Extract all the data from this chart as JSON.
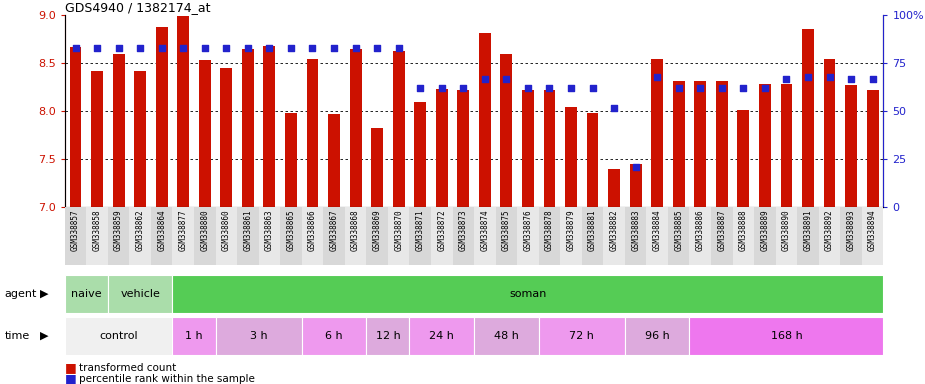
{
  "title": "GDS4940 / 1382174_at",
  "samples": [
    "GSM338857",
    "GSM338858",
    "GSM338859",
    "GSM338862",
    "GSM338864",
    "GSM338877",
    "GSM338880",
    "GSM338860",
    "GSM338861",
    "GSM338863",
    "GSM338865",
    "GSM338866",
    "GSM338867",
    "GSM338868",
    "GSM338869",
    "GSM338870",
    "GSM338871",
    "GSM338872",
    "GSM338873",
    "GSM338874",
    "GSM338875",
    "GSM338876",
    "GSM338878",
    "GSM338879",
    "GSM338881",
    "GSM338882",
    "GSM338883",
    "GSM338884",
    "GSM338885",
    "GSM338886",
    "GSM338887",
    "GSM338888",
    "GSM338889",
    "GSM338890",
    "GSM338891",
    "GSM338892",
    "GSM338893",
    "GSM338894"
  ],
  "bar_values": [
    8.67,
    8.42,
    8.6,
    8.42,
    8.88,
    8.99,
    8.53,
    8.45,
    8.65,
    8.68,
    7.98,
    8.55,
    7.97,
    8.65,
    7.83,
    8.63,
    8.1,
    8.23,
    8.22,
    8.82,
    8.6,
    8.22,
    8.22,
    8.05,
    7.98,
    7.4,
    7.45,
    8.55,
    8.32,
    8.32,
    8.32,
    8.01,
    8.28,
    8.28,
    8.86,
    8.55,
    8.27,
    8.22
  ],
  "percentile_values": [
    83,
    83,
    83,
    83,
    83,
    83,
    83,
    83,
    83,
    83,
    83,
    83,
    83,
    83,
    83,
    83,
    62,
    62,
    62,
    67,
    67,
    62,
    62,
    62,
    62,
    52,
    21,
    68,
    62,
    62,
    62,
    62,
    62,
    67,
    68,
    68,
    67,
    67
  ],
  "ylim_left": [
    7.0,
    9.0
  ],
  "ylim_right": [
    0,
    100
  ],
  "bar_color": "#cc1100",
  "dot_color": "#2222cc",
  "bar_bottom": 7.0,
  "agent_groups": [
    {
      "label": "naive",
      "start": 0,
      "end": 2,
      "color": "#aaddaa"
    },
    {
      "label": "vehicle",
      "start": 2,
      "end": 5,
      "color": "#aaddaa"
    },
    {
      "label": "soman",
      "start": 5,
      "end": 38,
      "color": "#55cc55"
    }
  ],
  "time_groups": [
    {
      "label": "control",
      "start": 0,
      "end": 5,
      "color": "#f0f0f0"
    },
    {
      "label": "1 h",
      "start": 5,
      "end": 7,
      "color": "#ee99ee"
    },
    {
      "label": "3 h",
      "start": 7,
      "end": 11,
      "color": "#ddaadd"
    },
    {
      "label": "6 h",
      "start": 11,
      "end": 14,
      "color": "#ee99ee"
    },
    {
      "label": "12 h",
      "start": 14,
      "end": 16,
      "color": "#ddaadd"
    },
    {
      "label": "24 h",
      "start": 16,
      "end": 19,
      "color": "#ee99ee"
    },
    {
      "label": "48 h",
      "start": 19,
      "end": 22,
      "color": "#ddaadd"
    },
    {
      "label": "72 h",
      "start": 22,
      "end": 26,
      "color": "#ee99ee"
    },
    {
      "label": "96 h",
      "start": 26,
      "end": 29,
      "color": "#ddaadd"
    },
    {
      "label": "168 h",
      "start": 29,
      "end": 38,
      "color": "#ee77ee"
    }
  ],
  "grid_dotted_yticks": [
    7.5,
    8.0,
    8.5
  ],
  "left_yticks": [
    7.0,
    7.5,
    8.0,
    8.5,
    9.0
  ],
  "right_yticks": [
    0,
    25,
    50,
    75,
    100
  ],
  "bar_color_legend": "#cc1100",
  "dot_color_legend": "#2222cc"
}
